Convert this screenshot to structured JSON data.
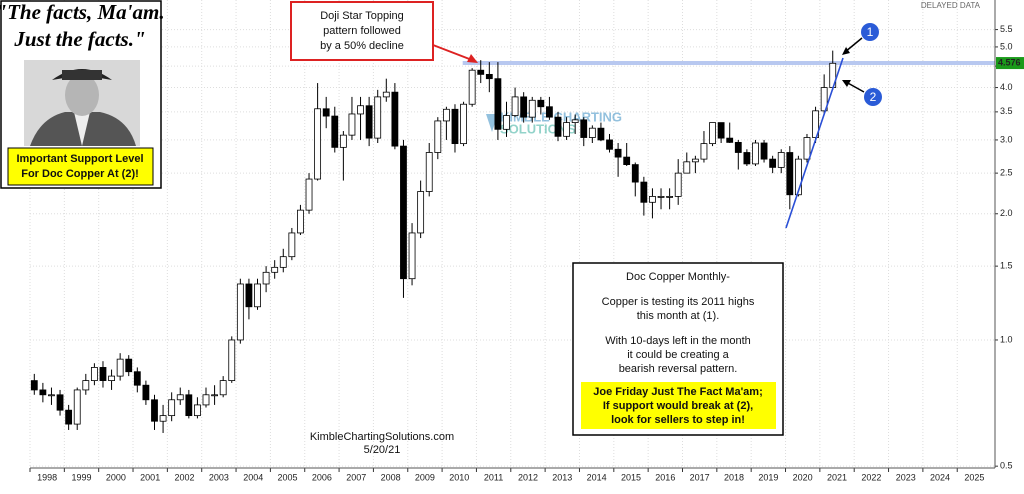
{
  "header": {
    "quote": [
      "\"The facts, Ma'am.",
      "Just the facts.\""
    ],
    "support_note": [
      "Important Support Level",
      "For Doc Copper At (2)!"
    ],
    "status": "DELAYED DATA"
  },
  "chart_data": {
    "type": "candlestick",
    "log_scale": true,
    "grid": true,
    "up_color": "#ffffff",
    "down_color": "#000000",
    "trend_color": "#2a4fd6",
    "level_color": "#b8c8f0",
    "x": [
      1998,
      1998.25,
      1998.5,
      1998.75,
      1999,
      1999.25,
      1999.5,
      1999.75,
      2000,
      2000.25,
      2000.5,
      2000.75,
      2001,
      2001.25,
      2001.5,
      2001.75,
      2002,
      2002.25,
      2002.5,
      2002.75,
      2003,
      2003.25,
      2003.5,
      2003.75,
      2004,
      2004.25,
      2004.5,
      2004.75,
      2005,
      2005.25,
      2005.5,
      2005.75,
      2006,
      2006.25,
      2006.5,
      2006.75,
      2007,
      2007.25,
      2007.5,
      2007.75,
      2008,
      2008.25,
      2008.5,
      2008.75,
      2009,
      2009.25,
      2009.5,
      2009.75,
      2010,
      2010.25,
      2010.5,
      2010.75,
      2011,
      2011.25,
      2011.5,
      2011.75,
      2012,
      2012.25,
      2012.5,
      2012.75,
      2013,
      2013.25,
      2013.5,
      2013.75,
      2014,
      2014.25,
      2014.5,
      2014.75,
      2015,
      2015.25,
      2015.5,
      2015.75,
      2016,
      2016.25,
      2016.5,
      2016.75,
      2017,
      2017.25,
      2017.5,
      2017.75,
      2018,
      2018.25,
      2018.5,
      2018.75,
      2019,
      2019.25,
      2019.5,
      2019.75,
      2020,
      2020.25,
      2020.5,
      2020.75,
      2021,
      2021.25
    ],
    "open": [
      0.8,
      0.76,
      0.74,
      0.74,
      0.68,
      0.63,
      0.76,
      0.8,
      0.86,
      0.8,
      0.82,
      0.9,
      0.84,
      0.78,
      0.72,
      0.64,
      0.66,
      0.72,
      0.74,
      0.66,
      0.7,
      0.74,
      0.74,
      0.8,
      1.0,
      1.36,
      1.2,
      1.36,
      1.45,
      1.49,
      1.58,
      1.8,
      2.04,
      2.42,
      3.56,
      3.42,
      2.88,
      3.08,
      3.46,
      3.62,
      3.03,
      3.8,
      3.9,
      2.9,
      1.4,
      1.8,
      2.26,
      2.8,
      3.33,
      3.55,
      2.94,
      3.65,
      4.4,
      4.3,
      4.2,
      3.18,
      3.43,
      3.8,
      3.4,
      3.73,
      3.6,
      3.4,
      3.06,
      3.3,
      3.35,
      3.04,
      3.2,
      3.0,
      2.85,
      2.73,
      2.62,
      2.38,
      2.13,
      2.2,
      2.2,
      2.2,
      2.5,
      2.66,
      2.7,
      2.94,
      3.3,
      3.03,
      2.96,
      2.8,
      2.63,
      2.95,
      2.7,
      2.58,
      2.8,
      2.22,
      2.7,
      3.04,
      3.52,
      4.0
    ],
    "high": [
      0.83,
      0.79,
      0.77,
      0.76,
      0.7,
      0.77,
      0.83,
      0.88,
      0.89,
      0.85,
      0.93,
      0.92,
      0.86,
      0.8,
      0.74,
      0.7,
      0.75,
      0.77,
      0.76,
      0.73,
      0.77,
      0.78,
      0.82,
      1.02,
      1.4,
      1.4,
      1.4,
      1.5,
      1.55,
      1.65,
      1.85,
      2.1,
      2.5,
      4.1,
      3.8,
      3.6,
      3.15,
      3.8,
      3.8,
      3.8,
      3.95,
      4.2,
      4.1,
      3.0,
      1.9,
      2.4,
      2.95,
      3.4,
      3.6,
      3.65,
      3.7,
      4.45,
      4.65,
      4.6,
      4.6,
      3.7,
      4.0,
      3.9,
      3.8,
      3.8,
      3.8,
      3.5,
      3.4,
      3.45,
      3.4,
      3.25,
      3.3,
      3.1,
      2.95,
      2.95,
      2.65,
      2.45,
      2.3,
      2.3,
      2.3,
      2.7,
      2.8,
      2.75,
      3.15,
      3.3,
      3.3,
      3.3,
      3.0,
      2.85,
      3.0,
      3.0,
      2.75,
      2.85,
      2.9,
      2.75,
      3.1,
      3.6,
      4.3,
      4.9
    ],
    "low": [
      0.74,
      0.71,
      0.7,
      0.66,
      0.61,
      0.61,
      0.74,
      0.78,
      0.77,
      0.76,
      0.8,
      0.82,
      0.75,
      0.7,
      0.61,
      0.6,
      0.64,
      0.7,
      0.65,
      0.65,
      0.69,
      0.7,
      0.73,
      0.79,
      0.98,
      1.12,
      1.18,
      1.3,
      1.4,
      1.45,
      1.55,
      1.78,
      2.0,
      2.4,
      3.2,
      2.8,
      2.4,
      3.0,
      3.0,
      2.9,
      2.95,
      3.7,
      2.85,
      1.26,
      1.35,
      1.75,
      2.2,
      2.7,
      3.0,
      2.8,
      2.9,
      3.6,
      4.1,
      3.9,
      3.0,
      3.05,
      3.4,
      3.3,
      3.3,
      3.45,
      3.35,
      2.98,
      3.0,
      3.1,
      2.9,
      2.95,
      2.98,
      2.8,
      2.45,
      2.6,
      2.2,
      1.98,
      1.95,
      2.05,
      2.05,
      2.1,
      2.5,
      2.5,
      2.65,
      2.9,
      2.95,
      2.95,
      2.55,
      2.6,
      2.6,
      2.65,
      2.5,
      2.5,
      2.05,
      2.2,
      2.65,
      2.95,
      3.45,
      3.95
    ],
    "close": [
      0.76,
      0.74,
      0.74,
      0.68,
      0.63,
      0.76,
      0.8,
      0.86,
      0.8,
      0.82,
      0.9,
      0.84,
      0.78,
      0.72,
      0.64,
      0.66,
      0.72,
      0.74,
      0.66,
      0.7,
      0.74,
      0.74,
      0.8,
      1.0,
      1.36,
      1.2,
      1.36,
      1.45,
      1.49,
      1.58,
      1.8,
      2.04,
      2.42,
      3.56,
      3.42,
      2.88,
      3.08,
      3.46,
      3.62,
      3.03,
      3.8,
      3.9,
      2.9,
      1.4,
      1.8,
      2.26,
      2.8,
      3.33,
      3.55,
      2.94,
      3.65,
      4.4,
      4.3,
      4.2,
      3.18,
      3.43,
      3.8,
      3.4,
      3.73,
      3.6,
      3.4,
      3.06,
      3.3,
      3.35,
      3.04,
      3.2,
      3.0,
      2.85,
      2.73,
      2.62,
      2.38,
      2.13,
      2.2,
      2.2,
      2.2,
      2.5,
      2.66,
      2.7,
      2.94,
      3.3,
      3.03,
      2.96,
      2.8,
      2.63,
      2.95,
      2.7,
      2.58,
      2.8,
      2.22,
      2.7,
      3.04,
      3.52,
      4.0,
      4.57
    ],
    "xlim": [
      1998,
      2026.1
    ],
    "xticks": [
      1998,
      1999,
      2000,
      2001,
      2002,
      2003,
      2004,
      2005,
      2006,
      2007,
      2008,
      2009,
      2010,
      2011,
      2012,
      2013,
      2014,
      2015,
      2016,
      2017,
      2018,
      2019,
      2020,
      2021,
      2022,
      2023,
      2024,
      2025
    ],
    "ylim": [
      0.495,
      6.47
    ],
    "yticks": [
      0.5,
      {
        "value": 1,
        "label": "1.0"
      },
      1.5,
      {
        "value": 2,
        "label": "2.0"
      },
      2.5,
      {
        "value": 3,
        "label": "3.0"
      },
      3.5,
      {
        "value": 4,
        "label": "4.0"
      },
      4.5,
      {
        "value": 5,
        "label": "5.0"
      },
      5.5
    ],
    "last_price": 4.576,
    "annotations": {
      "doji": [
        "Doji Star Topping",
        "pattern followed",
        "by a 50% decline"
      ],
      "markers": [
        "1",
        "2"
      ],
      "watermark": [
        "KIMBLE CHARTING",
        "SOLUTIONS"
      ],
      "credit": [
        "KimbleChartingSolutions.com",
        "5/20/21"
      ],
      "commentary": [
        "Doc Copper Monthly-",
        "Copper is testing its 2011 highs",
        "this month at (1).",
        "With 10-days left in the month",
        "it could be creating a",
        "bearish reversal pattern."
      ],
      "callout": [
        "Joe Friday Just The Fact Ma'am;",
        "If support would break at (2),",
        "look for sellers to step in!"
      ]
    }
  }
}
